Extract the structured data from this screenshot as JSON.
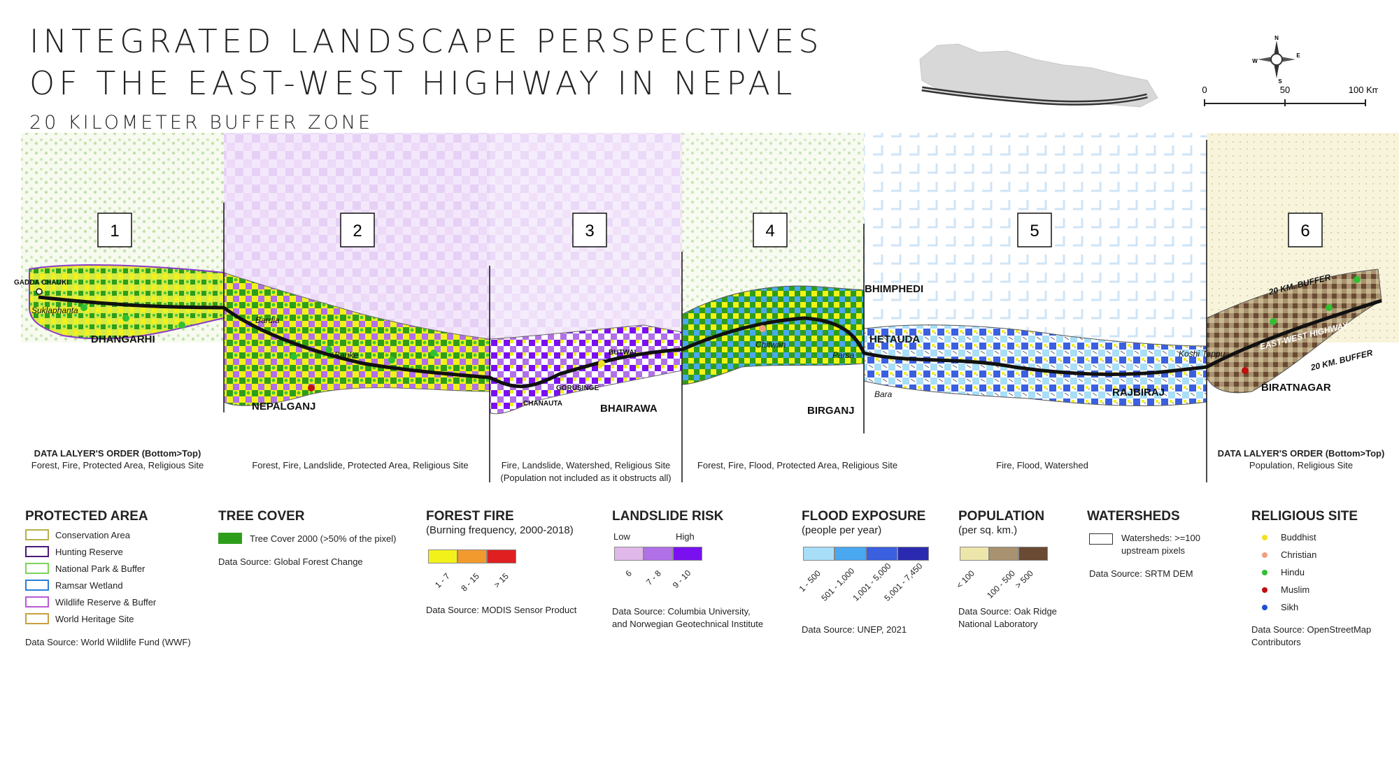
{
  "title_line1": "INTEGRATED LANDSCAPE PERSPECTIVES",
  "title_line2": "OF THE EAST-WEST HIGHWAY IN NEPAL",
  "subtitle": "20 KILOMETER BUFFER ZONE",
  "compass": {
    "n": "N",
    "e": "E",
    "s": "S",
    "w": "W"
  },
  "scale_bar": {
    "labels": [
      "0",
      "50",
      "100 Km."
    ]
  },
  "segments": [
    {
      "number": "1"
    },
    {
      "number": "2"
    },
    {
      "number": "3"
    },
    {
      "number": "4"
    },
    {
      "number": "5"
    },
    {
      "number": "6"
    }
  ],
  "places": {
    "gadda_chauki": "GADDA CHAUKI",
    "suklaphanta": "Suklaphanta",
    "dhangarhi": "DHANGARHI",
    "bardia": "Bardia",
    "banke": "Banke",
    "nepalganj": "NEPALGANJ",
    "butwal": "BUTWAL",
    "gorusinge": "GORUSINGE",
    "chanauta": "CHANAUTA",
    "bhairawa": "BHAIRAWA",
    "chitwan": "Chitwan",
    "parsa": "Parsa",
    "bara": "Bara",
    "birganj": "BIRGANJ",
    "bhimphedi": "BHIMPHEDI",
    "hetauda": "HETAUDA",
    "rajbiraj": "RAJBIRAJ",
    "koshi_tappu": "Koshi Tappu",
    "buffer_top": "20 KM. BUFFER",
    "highway": "EAST-WEST HIGHWAY",
    "buffer_bottom": "20 KM. BUFFER",
    "biratnagar": "BIRATNAGAR"
  },
  "layer_order": {
    "left_title": "DATA LALYER'S ORDER (Bottom>Top)",
    "left_text": "Forest, Fire, Protected Area, Religious Site",
    "right_title": "DATA LALYER'S ORDER (Bottom>Top)",
    "right_text": "Population, Religious Site"
  },
  "segment_captions": {
    "s2": "Forest, Fire, Landslide, Protected Area, Religious Site",
    "s3_line1": "Fire, Landslide, Watershed, Religious Site",
    "s3_line2": "(Population not included as it obstructs all)",
    "s4": "Forest, Fire, Flood, Protected Area, Religious Site",
    "s5": "Fire, Flood, Watershed"
  },
  "legend": {
    "protected_area": {
      "title": "PROTECTED AREA",
      "items": [
        {
          "label": "Conservation Area",
          "color": "#b8b04a"
        },
        {
          "label": "Hunting Reserve",
          "color": "#4a1a78"
        },
        {
          "label": "National Park & Buffer",
          "color": "#7cd45a"
        },
        {
          "label": "Ramsar Wetland",
          "color": "#2a7fd6"
        },
        {
          "label": "Wildlife Reserve & Buffer",
          "color": "#b85ad6"
        },
        {
          "label": "World Heritage Site",
          "color": "#c9a040"
        }
      ],
      "source": "Data Source: World Wildlife Fund (WWF)"
    },
    "tree_cover": {
      "title": "TREE COVER",
      "item": "Tree Cover 2000 (>50% of the pixel)",
      "color": "#2e9e1a",
      "source": "Data Source: Global Forest Change"
    },
    "forest_fire": {
      "title": "FOREST FIRE",
      "subtitle": "(Burning frequency, 2000-2018)",
      "classes": [
        {
          "label": "1 - 7",
          "color": "#f2f21a"
        },
        {
          "label": "8 - 15",
          "color": "#f29a2e"
        },
        {
          "label": "> 15",
          "color": "#e02020"
        }
      ],
      "source": "Data Source: MODIS Sensor Product"
    },
    "landslide": {
      "title": "LANDSLIDE RISK",
      "low": "Low",
      "high": "High",
      "classes": [
        {
          "label": "6",
          "color": "#e0b8ea"
        },
        {
          "label": "7 - 8",
          "color": "#b070e8"
        },
        {
          "label": "9 - 10",
          "color": "#7a10f0"
        }
      ],
      "source_line1": "Data Source: Columbia University,",
      "source_line2": "and Norwegian Geotechnical Institute"
    },
    "flood": {
      "title": "FLOOD EXPOSURE",
      "subtitle": "(people per year)",
      "classes": [
        {
          "label": "1 - 500",
          "color": "#a8def8"
        },
        {
          "label": "501 - 1,000",
          "color": "#4aa8f0"
        },
        {
          "label": "1,001 - 5,000",
          "color": "#3a60e0"
        },
        {
          "label": "5,001 - 7,450",
          "color": "#2a2ab0"
        }
      ],
      "source": "Data Source: UNEP, 2021"
    },
    "population": {
      "title": "POPULATION",
      "subtitle": "(per sq. km.)",
      "classes": [
        {
          "label": "< 100",
          "color": "#ece6aa"
        },
        {
          "label": "100 - 500",
          "color": "#a89270"
        },
        {
          "label": "> 500",
          "color": "#6a4a32"
        }
      ],
      "source_line1": "Data Source: Oak Ridge",
      "source_line2": "National Laboratory"
    },
    "watersheds": {
      "title": "WATERSHEDS",
      "item_line1": "Watersheds: >=100",
      "item_line2": "upstream pixels",
      "source": "Data Source: SRTM DEM"
    },
    "religious": {
      "title": "RELIGIOUS SITE",
      "items": [
        {
          "label": "Buddhist",
          "color": "#f0e020"
        },
        {
          "label": "Christian",
          "color": "#f0a080"
        },
        {
          "label": "Hindu",
          "color": "#30c030"
        },
        {
          "label": "Muslim",
          "color": "#c01010"
        },
        {
          "label": "Sikh",
          "color": "#2050d0"
        }
      ],
      "source_line1": "Data Source: OpenStreetMap",
      "source_line2": "Contributors"
    }
  }
}
